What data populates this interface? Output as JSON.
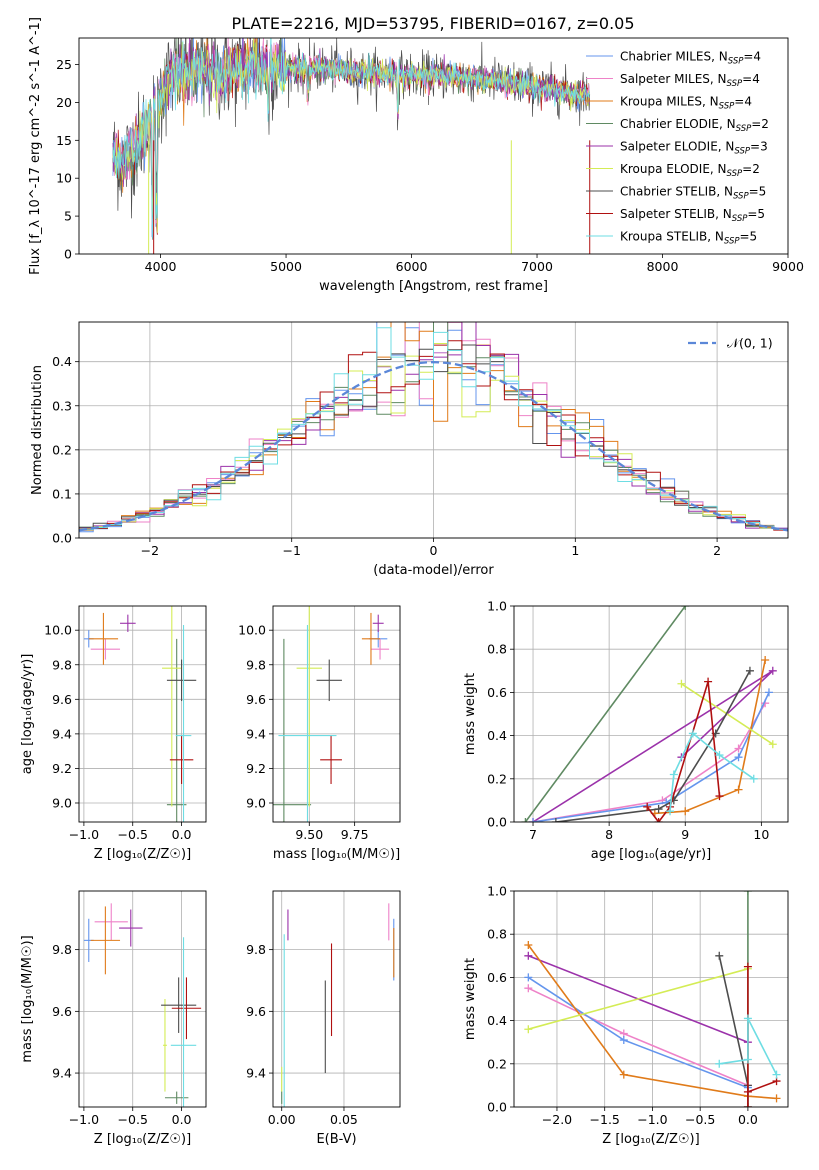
{
  "figure_title": "PLATE=2216, MJD=53795, FIBERID=0167, z=0.05",
  "colors": {
    "chabrier_miles": "#6495ED",
    "salpeter_miles": "#EE82C8",
    "kroupa_miles": "#E07B1A",
    "chabrier_elodie": "#5F8A62",
    "salpeter_elodie": "#9B32AA",
    "kroupa_elodie": "#D4EC55",
    "chabrier_stelib": "#4D4D4D",
    "salpeter_stelib": "#B01010",
    "kroupa_stelib": "#6EDDE3",
    "normal": "#5B87D8"
  },
  "chart_data": [
    {
      "id": "spectrum",
      "type": "line",
      "title": "PLATE=2216, MJD=53795, FIBERID=0167, z=0.05",
      "xlabel": "wavelength [Angstrom, rest frame]",
      "ylabel": "Flux [f_λ 10^-17 erg cm^-2 s^-1 A^-1]",
      "xlim": [
        3350,
        9000
      ],
      "ylim": [
        0,
        28.5
      ],
      "xticks": [
        4000,
        5000,
        6000,
        7000,
        8000,
        9000
      ],
      "yticks": [
        0,
        5,
        10,
        15,
        20,
        25
      ],
      "x_range_data": [
        3620,
        7420
      ],
      "continuum": {
        "x": [
          3620,
          3700,
          3800,
          3900,
          4000,
          4100,
          4300,
          4500,
          4800,
          5000,
          5300,
          5600,
          6000,
          6300,
          6600,
          6800,
          7000,
          7200,
          7420
        ],
        "y": [
          13,
          12,
          14,
          17,
          21,
          24,
          24,
          24,
          25,
          24.5,
          24.5,
          24,
          23.5,
          23.5,
          23,
          22.5,
          22,
          21.5,
          21
        ]
      },
      "legend": [
        {
          "label": "Chabrier MILES, N",
          "sub": "SSP",
          "tail": "=4",
          "color_key": "chabrier_miles"
        },
        {
          "label": "Salpeter MILES, N",
          "sub": "SSP",
          "tail": "=4",
          "color_key": "salpeter_miles"
        },
        {
          "label": "Kroupa MILES, N",
          "sub": "SSP",
          "tail": "=4",
          "color_key": "kroupa_miles"
        },
        {
          "label": "Chabrier ELODIE, N",
          "sub": "SSP",
          "tail": "=2",
          "color_key": "chabrier_elodie"
        },
        {
          "label": "Salpeter ELODIE, N",
          "sub": "SSP",
          "tail": "=3",
          "color_key": "salpeter_elodie"
        },
        {
          "label": "Kroupa ELODIE, N",
          "sub": "SSP",
          "tail": "=2",
          "color_key": "kroupa_elodie"
        },
        {
          "label": "Chabrier STELIB, N",
          "sub": "SSP",
          "tail": "=5",
          "color_key": "chabrier_stelib"
        },
        {
          "label": "Salpeter STELIB, N",
          "sub": "SSP",
          "tail": "=5",
          "color_key": "salpeter_stelib"
        },
        {
          "label": "Kroupa STELIB, N",
          "sub": "SSP",
          "tail": "=5",
          "color_key": "kroupa_stelib"
        }
      ]
    },
    {
      "id": "residuals",
      "type": "histogram",
      "xlabel": "(data-model)/error",
      "ylabel": "Normed distribution",
      "xlim": [
        -2.5,
        2.5
      ],
      "ylim": [
        0,
        0.49
      ],
      "xticks": [
        -2,
        -1,
        0,
        1,
        2
      ],
      "yticks": [
        0.0,
        0.1,
        0.2,
        0.3,
        0.4
      ],
      "bin_width": 0.1,
      "legend_label": "𝒩(0, 1)",
      "gaussian": {
        "mean": 0,
        "sigma": 1
      }
    },
    {
      "id": "age_vs_Z",
      "type": "scatter",
      "xlabel": "Z [log₁₀(Z/Z☉)]",
      "ylabel": "age  [log₁₀(age/yr)]",
      "xlim": [
        -1.05,
        0.25
      ],
      "ylim": [
        8.89,
        10.14
      ],
      "xticks": [
        -1.0,
        -0.5,
        0.0
      ],
      "yticks": [
        9.0,
        9.2,
        9.4,
        9.6,
        9.8,
        10.0
      ],
      "points": [
        {
          "k": "chabrier_miles",
          "x": -0.95,
          "xerr": 0.05,
          "y": 9.95,
          "yerr": 0.05
        },
        {
          "k": "salpeter_miles",
          "x": -0.78,
          "xerr": 0.15,
          "y": 9.89,
          "yerr": 0.06
        },
        {
          "k": "kroupa_miles",
          "x": -0.8,
          "xerr": 0.15,
          "y": 9.95,
          "yerr": 0.15
        },
        {
          "k": "chabrier_elodie",
          "x": -0.05,
          "xerr": 0.1,
          "y": 8.99,
          "yerr": 0.96
        },
        {
          "k": "salpeter_elodie",
          "x": -0.55,
          "xerr": 0.08,
          "y": 10.04,
          "yerr": 0.05
        },
        {
          "k": "kroupa_elodie",
          "x": -0.1,
          "xerr": 0.1,
          "y": 9.78,
          "yerr": 0.8
        },
        {
          "k": "chabrier_stelib",
          "x": 0.0,
          "xerr": 0.15,
          "y": 9.71,
          "yerr": 0.12
        },
        {
          "k": "salpeter_stelib",
          "x": 0.0,
          "xerr": 0.12,
          "y": 9.25,
          "yerr": 0.14
        },
        {
          "k": "kroupa_stelib",
          "x": 0.02,
          "xerr": 0.08,
          "y": 9.39,
          "yerr": 0.64
        }
      ]
    },
    {
      "id": "age_vs_mass",
      "type": "scatter",
      "xlabel": "mass [log₁₀(M/M☉)]",
      "ylabel": "",
      "xlim": [
        9.3,
        10.0
      ],
      "ylim": [
        8.89,
        10.14
      ],
      "xticks": [
        9.5,
        9.75
      ],
      "yticks": [
        9.0,
        9.2,
        9.4,
        9.6,
        9.8,
        10.0
      ],
      "points": [
        {
          "k": "chabrier_miles",
          "x": 9.88,
          "xerr": 0.05,
          "y": 9.95,
          "yerr": 0.05
        },
        {
          "k": "salpeter_miles",
          "x": 9.89,
          "xerr": 0.05,
          "y": 9.89,
          "yerr": 0.06
        },
        {
          "k": "kroupa_miles",
          "x": 9.84,
          "xerr": 0.05,
          "y": 9.95,
          "yerr": 0.15
        },
        {
          "k": "chabrier_elodie",
          "x": 9.36,
          "xerr": 0.15,
          "y": 8.99,
          "yerr": 0.96
        },
        {
          "k": "salpeter_elodie",
          "x": 9.88,
          "xerr": 0.03,
          "y": 10.04,
          "yerr": 0.05
        },
        {
          "k": "kroupa_elodie",
          "x": 9.5,
          "xerr": 0.07,
          "y": 9.78,
          "yerr": 0.8
        },
        {
          "k": "chabrier_stelib",
          "x": 9.61,
          "xerr": 0.07,
          "y": 9.71,
          "yerr": 0.12
        },
        {
          "k": "salpeter_stelib",
          "x": 9.62,
          "xerr": 0.06,
          "y": 9.25,
          "yerr": 0.14
        },
        {
          "k": "kroupa_stelib",
          "x": 9.49,
          "xerr": 0.16,
          "y": 9.39,
          "yerr": 0.64
        }
      ]
    },
    {
      "id": "weight_vs_age",
      "type": "line",
      "xlabel": "age  [log₁₀(age/yr)]",
      "ylabel": "mass weight",
      "xlim": [
        6.75,
        10.35
      ],
      "ylim": [
        0.0,
        1.0
      ],
      "xticks": [
        7,
        8,
        9,
        10
      ],
      "yticks": [
        0.0,
        0.2,
        0.4,
        0.6,
        0.8,
        1.0
      ],
      "series": [
        {
          "k": "chabrier_elodie",
          "x": [
            6.9,
            9.0
          ],
          "y": [
            0.0,
            1.0
          ]
        },
        {
          "k": "salpeter_elodie",
          "x": [
            7.0,
            10.15,
            8.95
          ],
          "y": [
            0.0,
            0.7,
            0.3
          ]
        },
        {
          "k": "salpeter_miles",
          "x": [
            7.0,
            8.7,
            9.7,
            10.05
          ],
          "y": [
            0.0,
            0.1,
            0.34,
            0.55
          ]
        },
        {
          "k": "chabrier_miles",
          "x": [
            7.0,
            8.75,
            9.7,
            10.1
          ],
          "y": [
            0.0,
            0.09,
            0.3,
            0.6
          ]
        },
        {
          "k": "kroupa_miles",
          "x": [
            8.6,
            9.0,
            9.7,
            10.05
          ],
          "y": [
            0.04,
            0.05,
            0.15,
            0.75
          ]
        },
        {
          "k": "kroupa_elodie",
          "x": [
            8.95,
            10.15
          ],
          "y": [
            0.64,
            0.36
          ]
        },
        {
          "k": "chabrier_stelib",
          "x": [
            7.3,
            8.65,
            8.85,
            9.4,
            9.85
          ],
          "y": [
            0.0,
            0.06,
            0.1,
            0.41,
            0.7
          ]
        },
        {
          "k": "salpeter_stelib",
          "x": [
            8.5,
            8.65,
            8.8,
            9.3,
            9.45
          ],
          "y": [
            0.07,
            0.0,
            0.07,
            0.65,
            0.12
          ]
        },
        {
          "k": "kroupa_stelib",
          "x": [
            8.8,
            8.85,
            9.1,
            9.45,
            9.9
          ],
          "y": [
            0.05,
            0.22,
            0.41,
            0.31,
            0.2
          ]
        }
      ]
    },
    {
      "id": "mass_vs_Z",
      "type": "scatter",
      "xlabel": "Z [log₁₀(Z/Z☉)]",
      "ylabel": "mass [log₁₀(M/M☉)]",
      "xlim": [
        -1.05,
        0.25
      ],
      "ylim": [
        9.29,
        9.99
      ],
      "xticks": [
        -1.0,
        -0.5,
        0.0
      ],
      "yticks": [
        9.4,
        9.6,
        9.8
      ],
      "points": [
        {
          "k": "chabrier_miles",
          "x": -0.95,
          "xerr": 0.05,
          "y": 9.83,
          "yerr": 0.07
        },
        {
          "k": "salpeter_miles",
          "x": -0.72,
          "xerr": 0.17,
          "y": 9.89,
          "yerr": 0.06
        },
        {
          "k": "kroupa_miles",
          "x": -0.78,
          "xerr": 0.15,
          "y": 9.83,
          "yerr": 0.11
        },
        {
          "k": "chabrier_elodie",
          "x": -0.05,
          "xerr": 0.12,
          "y": 9.32,
          "yerr": 0.02
        },
        {
          "k": "salpeter_elodie",
          "x": -0.52,
          "xerr": 0.12,
          "y": 9.87,
          "yerr": 0.06
        },
        {
          "k": "kroupa_elodie",
          "x": -0.17,
          "xerr": 0.02,
          "y": 9.49,
          "yerr": 0.15
        },
        {
          "k": "chabrier_stelib",
          "x": -0.03,
          "xerr": 0.18,
          "y": 9.62,
          "yerr": 0.09
        },
        {
          "k": "salpeter_stelib",
          "x": 0.05,
          "xerr": 0.15,
          "y": 9.61,
          "yerr": 0.1
        },
        {
          "k": "kroupa_stelib",
          "x": 0.02,
          "xerr": 0.13,
          "y": 9.49,
          "yerr": 0.35
        }
      ]
    },
    {
      "id": "mass_vs_ebv",
      "type": "scatter",
      "xlabel": "E(B-V)",
      "ylabel": "",
      "xlim": [
        -0.007,
        0.095
      ],
      "ylim": [
        9.29,
        9.99
      ],
      "xticks": [
        0.0,
        0.05
      ],
      "yticks": [
        9.4,
        9.6,
        9.8
      ],
      "points": [
        {
          "k": "chabrier_miles",
          "x": 0.09,
          "xerr": 0,
          "y": 9.8,
          "yerr": 0.1
        },
        {
          "k": "salpeter_miles",
          "x": 0.086,
          "xerr": 0,
          "y": 9.89,
          "yerr": 0.06
        },
        {
          "k": "kroupa_miles",
          "x": 0.09,
          "xerr": 0,
          "y": 9.79,
          "yerr": 0.08
        },
        {
          "k": "chabrier_elodie",
          "x": 0.0,
          "xerr": 0,
          "y": 9.32,
          "yerr": 0.02
        },
        {
          "k": "salpeter_elodie",
          "x": 0.005,
          "xerr": 0,
          "y": 9.88,
          "yerr": 0.05
        },
        {
          "k": "kroupa_elodie",
          "x": 0.0,
          "xerr": 0,
          "y": 9.38,
          "yerr": 0.04
        },
        {
          "k": "chabrier_stelib",
          "x": 0.035,
          "xerr": 0,
          "y": 9.55,
          "yerr": 0.15
        },
        {
          "k": "salpeter_stelib",
          "x": 0.04,
          "xerr": 0,
          "y": 9.67,
          "yerr": 0.15
        },
        {
          "k": "kroupa_stelib",
          "x": 0.002,
          "xerr": 0,
          "y": 9.5,
          "yerr": 0.35
        }
      ]
    },
    {
      "id": "weight_vs_Z",
      "type": "line",
      "xlabel": "Z [log₁₀(Z/Z☉)]",
      "ylabel": "mass weight",
      "xlim": [
        -2.45,
        0.42
      ],
      "ylim": [
        0.0,
        1.0
      ],
      "xticks": [
        -2.0,
        -1.5,
        -1.0,
        -0.5,
        0.0
      ],
      "yticks": [
        0.0,
        0.2,
        0.4,
        0.6,
        0.8,
        1.0
      ],
      "series": [
        {
          "k": "chabrier_elodie",
          "x": [
            0.0,
            0.0
          ],
          "y": [
            0.0,
            1.0
          ]
        },
        {
          "k": "salpeter_elodie",
          "x": [
            -2.3,
            0.0
          ],
          "y": [
            0.7,
            0.3
          ]
        },
        {
          "k": "salpeter_miles",
          "x": [
            -2.3,
            -1.3,
            0.0
          ],
          "y": [
            0.55,
            0.34,
            0.1
          ]
        },
        {
          "k": "chabrier_miles",
          "x": [
            -2.3,
            -1.3,
            0.0
          ],
          "y": [
            0.6,
            0.31,
            0.09
          ]
        },
        {
          "k": "kroupa_miles",
          "x": [
            -2.3,
            -1.3,
            0.0,
            0.3
          ],
          "y": [
            0.75,
            0.15,
            0.05,
            0.04
          ]
        },
        {
          "k": "kroupa_elodie",
          "x": [
            -2.3,
            0.0
          ],
          "y": [
            0.36,
            0.64
          ]
        },
        {
          "k": "chabrier_stelib",
          "x": [
            -0.3,
            0.0,
            0.0
          ],
          "y": [
            0.7,
            0.1,
            0.0
          ]
        },
        {
          "k": "salpeter_stelib",
          "x": [
            0.0,
            0.0,
            0.0,
            0.3
          ],
          "y": [
            0.65,
            0.0,
            0.07,
            0.12
          ]
        },
        {
          "k": "kroupa_stelib",
          "x": [
            -0.3,
            0.0,
            0.0,
            0.3
          ],
          "y": [
            0.2,
            0.22,
            0.41,
            0.15
          ]
        }
      ]
    }
  ]
}
